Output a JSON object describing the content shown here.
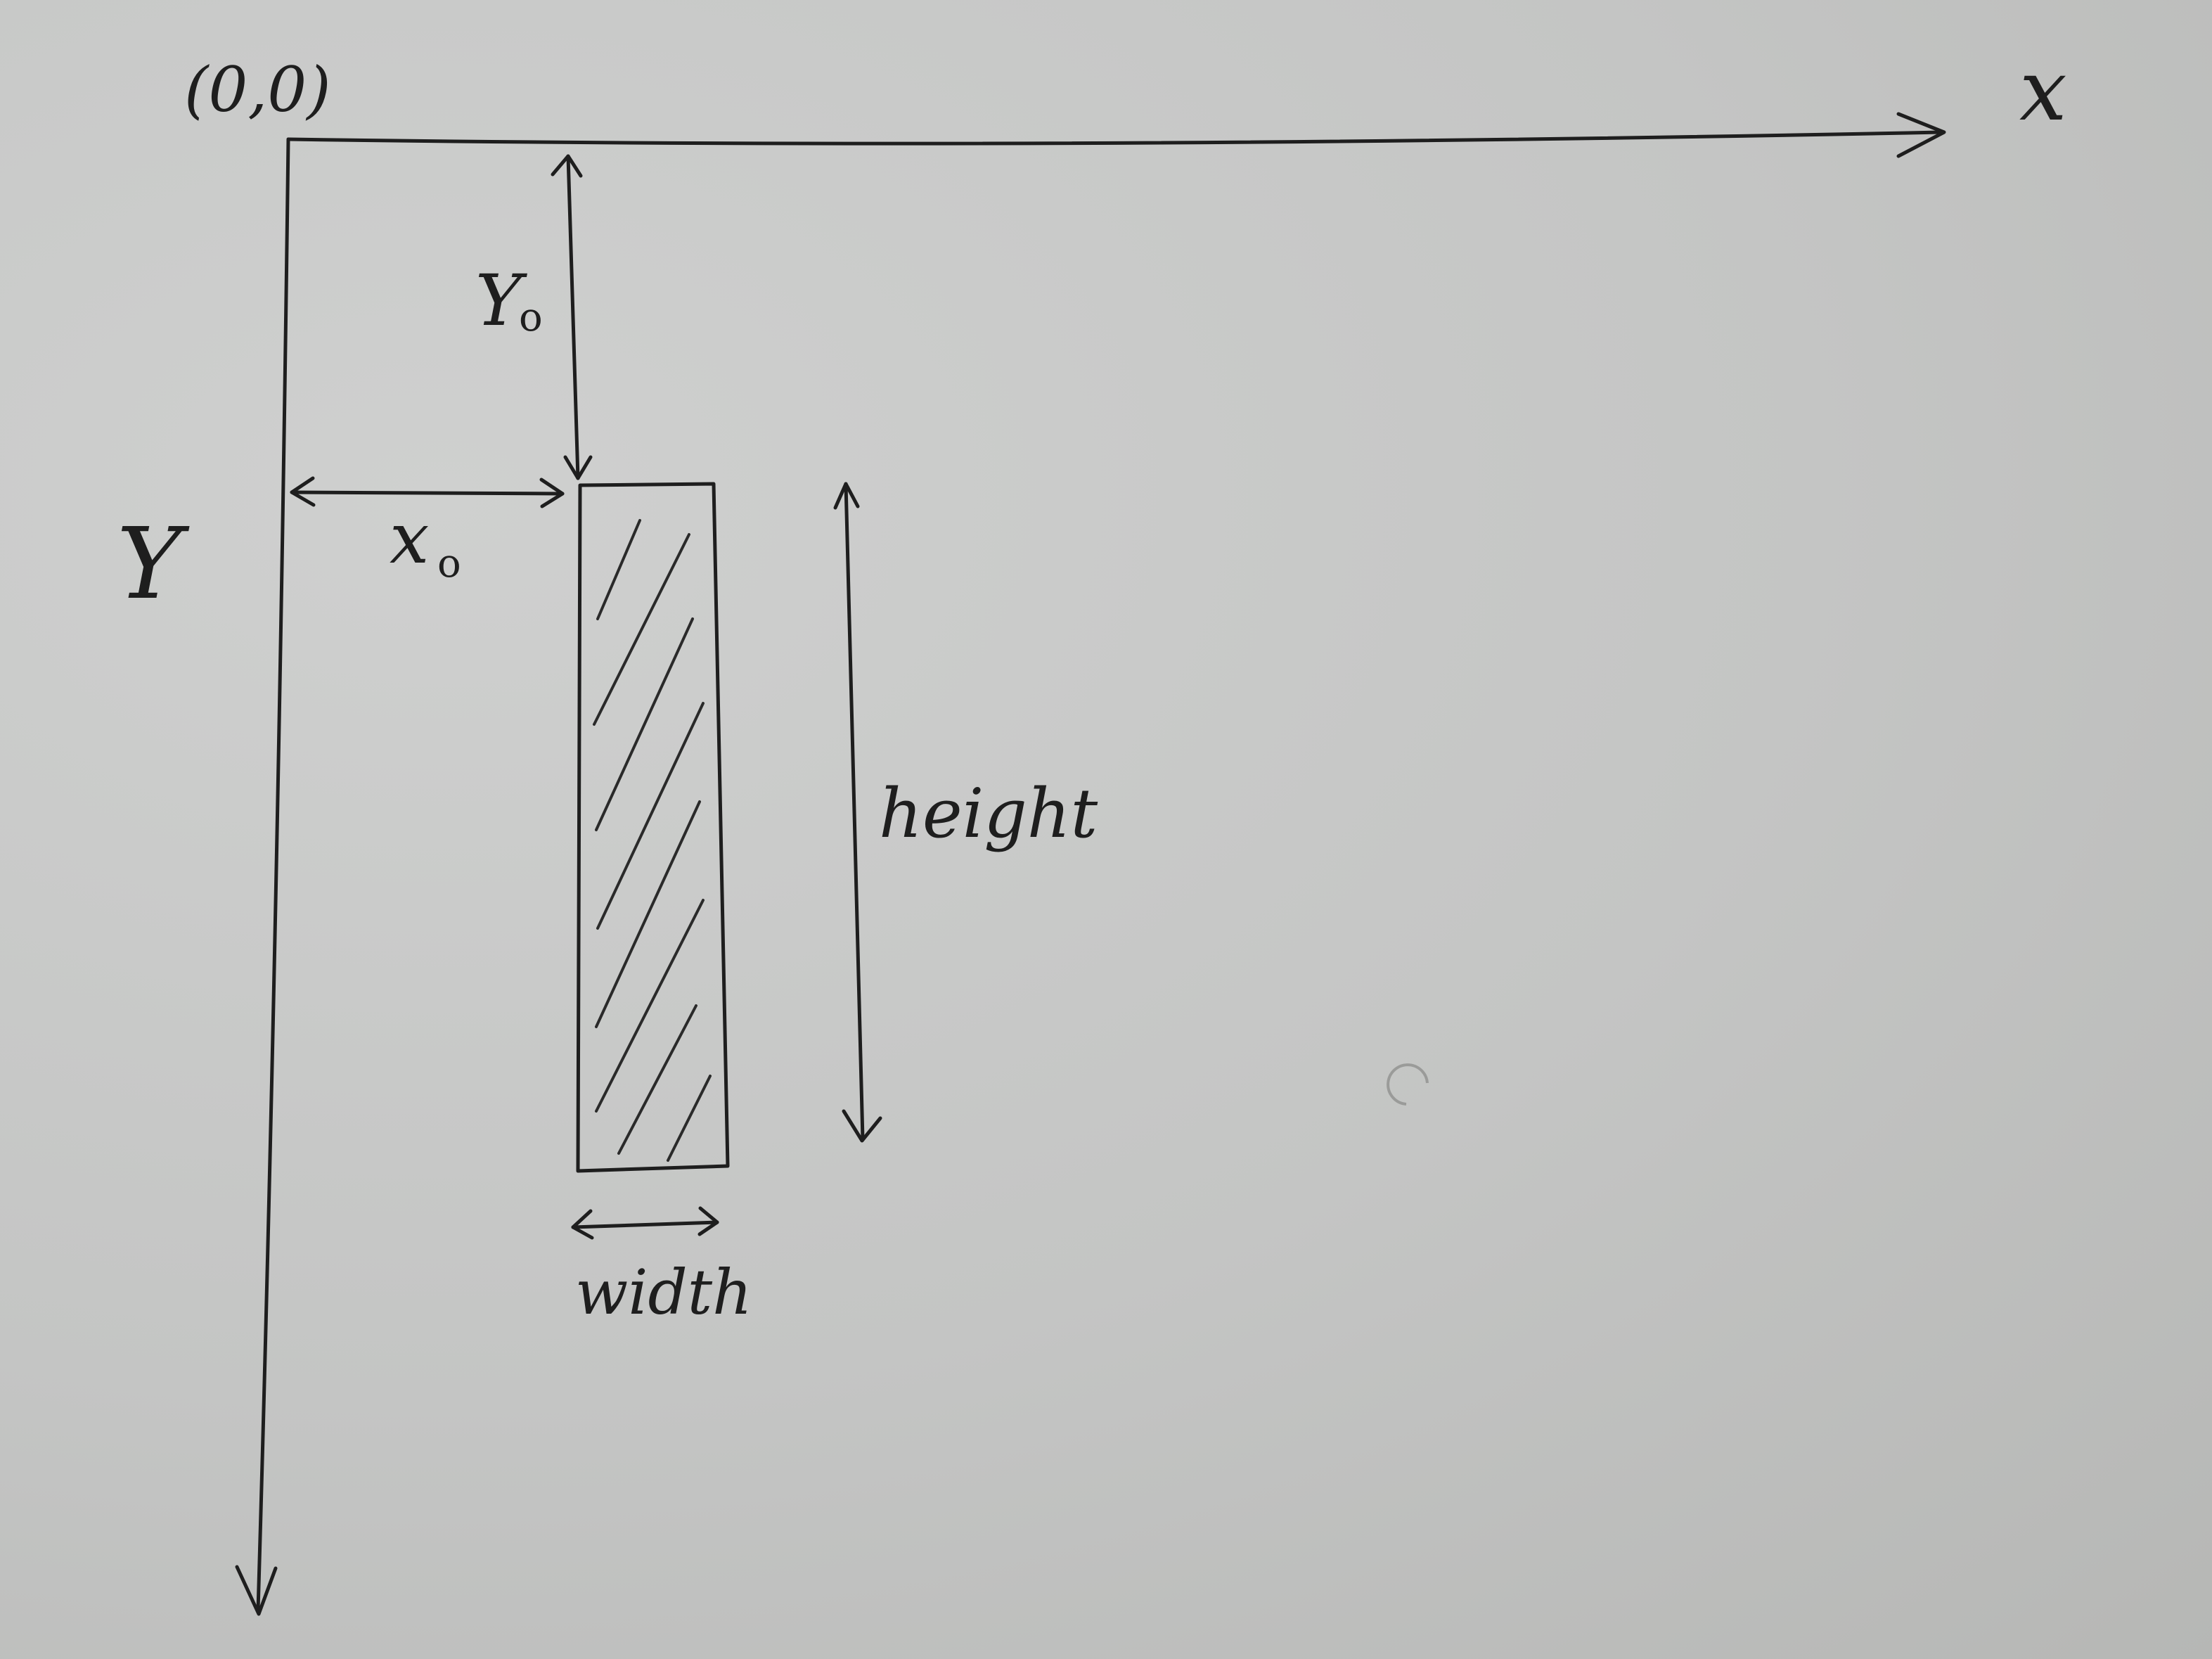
{
  "diagram": {
    "origin_label": "(0,0)",
    "x_axis_label": "x",
    "y_axis_label": "Y",
    "x0_label": "x",
    "x0_subscript": "o",
    "y0_label": "Y",
    "y0_subscript": "o",
    "height_label": "height",
    "width_label": "width"
  },
  "colors": {
    "paper": "#c8c9c8",
    "ink": "#1e1e1e"
  }
}
